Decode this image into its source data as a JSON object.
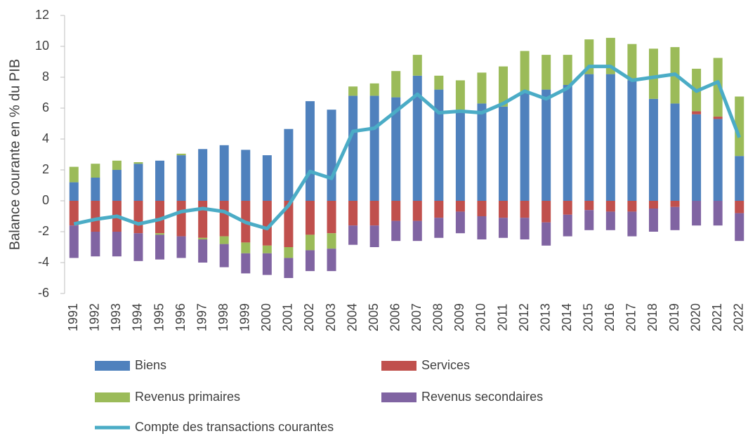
{
  "chart_data": {
    "type": "bar",
    "stacked": true,
    "y_label": "Balance courante en % du PIB",
    "categories": [
      "1991",
      "1992",
      "1993",
      "1994",
      "1995",
      "1996",
      "1997",
      "1998",
      "1999",
      "2000",
      "2001",
      "2002",
      "2003",
      "2004",
      "2005",
      "2006",
      "2007",
      "2008",
      "2009",
      "2010",
      "2011",
      "2012",
      "2013",
      "2014",
      "2015",
      "2016",
      "2017",
      "2018",
      "2019",
      "2020",
      "2021",
      "2022"
    ],
    "series": [
      {
        "name": "Biens",
        "color": "#4f81bd",
        "values": [
          1.2,
          1.5,
          2.0,
          2.4,
          2.6,
          2.95,
          3.35,
          3.6,
          3.3,
          2.95,
          4.65,
          6.45,
          5.9,
          6.8,
          6.8,
          6.7,
          8.1,
          7.2,
          5.9,
          6.3,
          6.1,
          7.0,
          7.2,
          7.5,
          8.2,
          8.2,
          7.8,
          6.6,
          6.3,
          5.6,
          5.3,
          2.9
        ]
      },
      {
        "name": "Services",
        "color": "#c0504d",
        "values": [
          -1.6,
          -2.0,
          -2.0,
          -2.1,
          -2.1,
          -2.3,
          -2.4,
          -2.3,
          -2.7,
          -2.9,
          -3.0,
          -2.2,
          -2.1,
          -1.6,
          -1.6,
          -1.3,
          -1.3,
          -1.1,
          -0.7,
          -1.0,
          -1.1,
          -1.1,
          -1.4,
          -0.9,
          -0.6,
          -0.7,
          -0.7,
          -0.5,
          -0.4,
          0.2,
          0.15,
          -0.8
        ]
      },
      {
        "name": "Revenus primaires",
        "color": "#9bbb59",
        "values": [
          1.0,
          0.9,
          0.6,
          0.1,
          -0.1,
          0.1,
          -0.1,
          -0.5,
          -0.7,
          -0.5,
          -0.7,
          -1.0,
          -1.0,
          0.6,
          0.8,
          1.7,
          1.35,
          0.9,
          1.9,
          2.0,
          2.6,
          2.7,
          2.25,
          1.95,
          2.25,
          2.35,
          2.35,
          3.25,
          3.65,
          2.75,
          3.8,
          3.85
        ]
      },
      {
        "name": "Revenus secondaires",
        "color": "#8064a2",
        "values": [
          -2.1,
          -1.6,
          -1.6,
          -1.8,
          -1.6,
          -1.4,
          -1.5,
          -1.5,
          -1.3,
          -1.4,
          -1.3,
          -1.35,
          -1.45,
          -1.25,
          -1.4,
          -1.3,
          -1.3,
          -1.3,
          -1.4,
          -1.5,
          -1.3,
          -1.4,
          -1.5,
          -1.4,
          -1.3,
          -1.2,
          -1.6,
          -1.5,
          -1.5,
          -1.6,
          -1.6,
          -1.8
        ]
      },
      {
        "name": "Compte des transactions courantes",
        "type": "line",
        "color": "#4bacc6",
        "values": [
          -1.5,
          -1.2,
          -1.0,
          -1.5,
          -1.2,
          -0.7,
          -0.5,
          -0.7,
          -1.4,
          -1.8,
          -0.3,
          1.9,
          1.45,
          4.5,
          4.7,
          5.8,
          6.9,
          5.7,
          5.8,
          5.7,
          6.3,
          7.1,
          6.6,
          7.3,
          8.7,
          8.7,
          7.8,
          8.0,
          8.2,
          7.1,
          7.7,
          4.1
        ]
      }
    ],
    "ylim": [
      -6,
      12
    ],
    "yticks": [
      -6,
      -4,
      -2,
      0,
      2,
      4,
      6,
      8,
      10,
      12
    ],
    "grid": false
  }
}
